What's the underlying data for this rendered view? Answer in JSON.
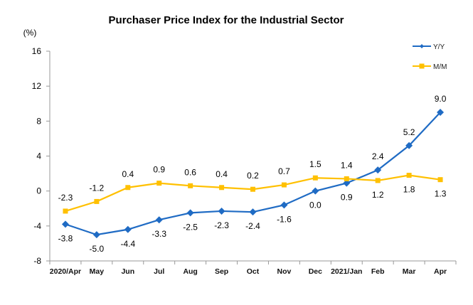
{
  "chart_data": {
    "type": "line",
    "title": "Purchaser Price Index for the Industrial  Sector",
    "ylabel": "(%)",
    "xlabel": "",
    "ylim": [
      -8,
      16
    ],
    "yticks": [
      -8,
      -4,
      0,
      4,
      8,
      12,
      16
    ],
    "grid": false,
    "legend_position": "top-right",
    "categories": [
      "2020/Apr",
      "May",
      "Jun",
      "Jul",
      "Aug",
      "Sep",
      "Oct",
      "Nov",
      "Dec",
      "2021/Jan",
      "Feb",
      "Mar",
      "Apr"
    ],
    "series": [
      {
        "name": "Y/Y",
        "color": "#1F6BC4",
        "marker": "diamond",
        "values": [
          -3.8,
          -5.0,
          -4.4,
          -3.3,
          -2.5,
          -2.3,
          -2.4,
          -1.6,
          0.0,
          0.9,
          2.4,
          5.2,
          9.0
        ],
        "labels": [
          "-3.8",
          "-5.0",
          "-4.4",
          "-3.3",
          "-2.5",
          "-2.3",
          "-2.4",
          "-1.6",
          "0.0",
          "0.9",
          "2.4",
          "5.2",
          "9.0"
        ],
        "label_side": [
          "below",
          "below",
          "below",
          "below",
          "below",
          "below",
          "below",
          "below",
          "below",
          "below",
          "above",
          "above",
          "above"
        ]
      },
      {
        "name": "M/M",
        "color": "#FFC000",
        "marker": "square",
        "values": [
          -2.3,
          -1.2,
          0.4,
          0.9,
          0.6,
          0.4,
          0.2,
          0.7,
          1.5,
          1.4,
          1.2,
          1.8,
          1.3
        ],
        "labels": [
          "-2.3",
          "-1.2",
          "0.4",
          "0.9",
          "0.6",
          "0.4",
          "0.2",
          "0.7",
          "1.5",
          "1.4",
          "1.2",
          "1.8",
          "1.3"
        ],
        "label_side": [
          "above",
          "above",
          "above",
          "above",
          "above",
          "above",
          "above",
          "above",
          "above",
          "above",
          "below",
          "below",
          "below"
        ]
      }
    ]
  }
}
